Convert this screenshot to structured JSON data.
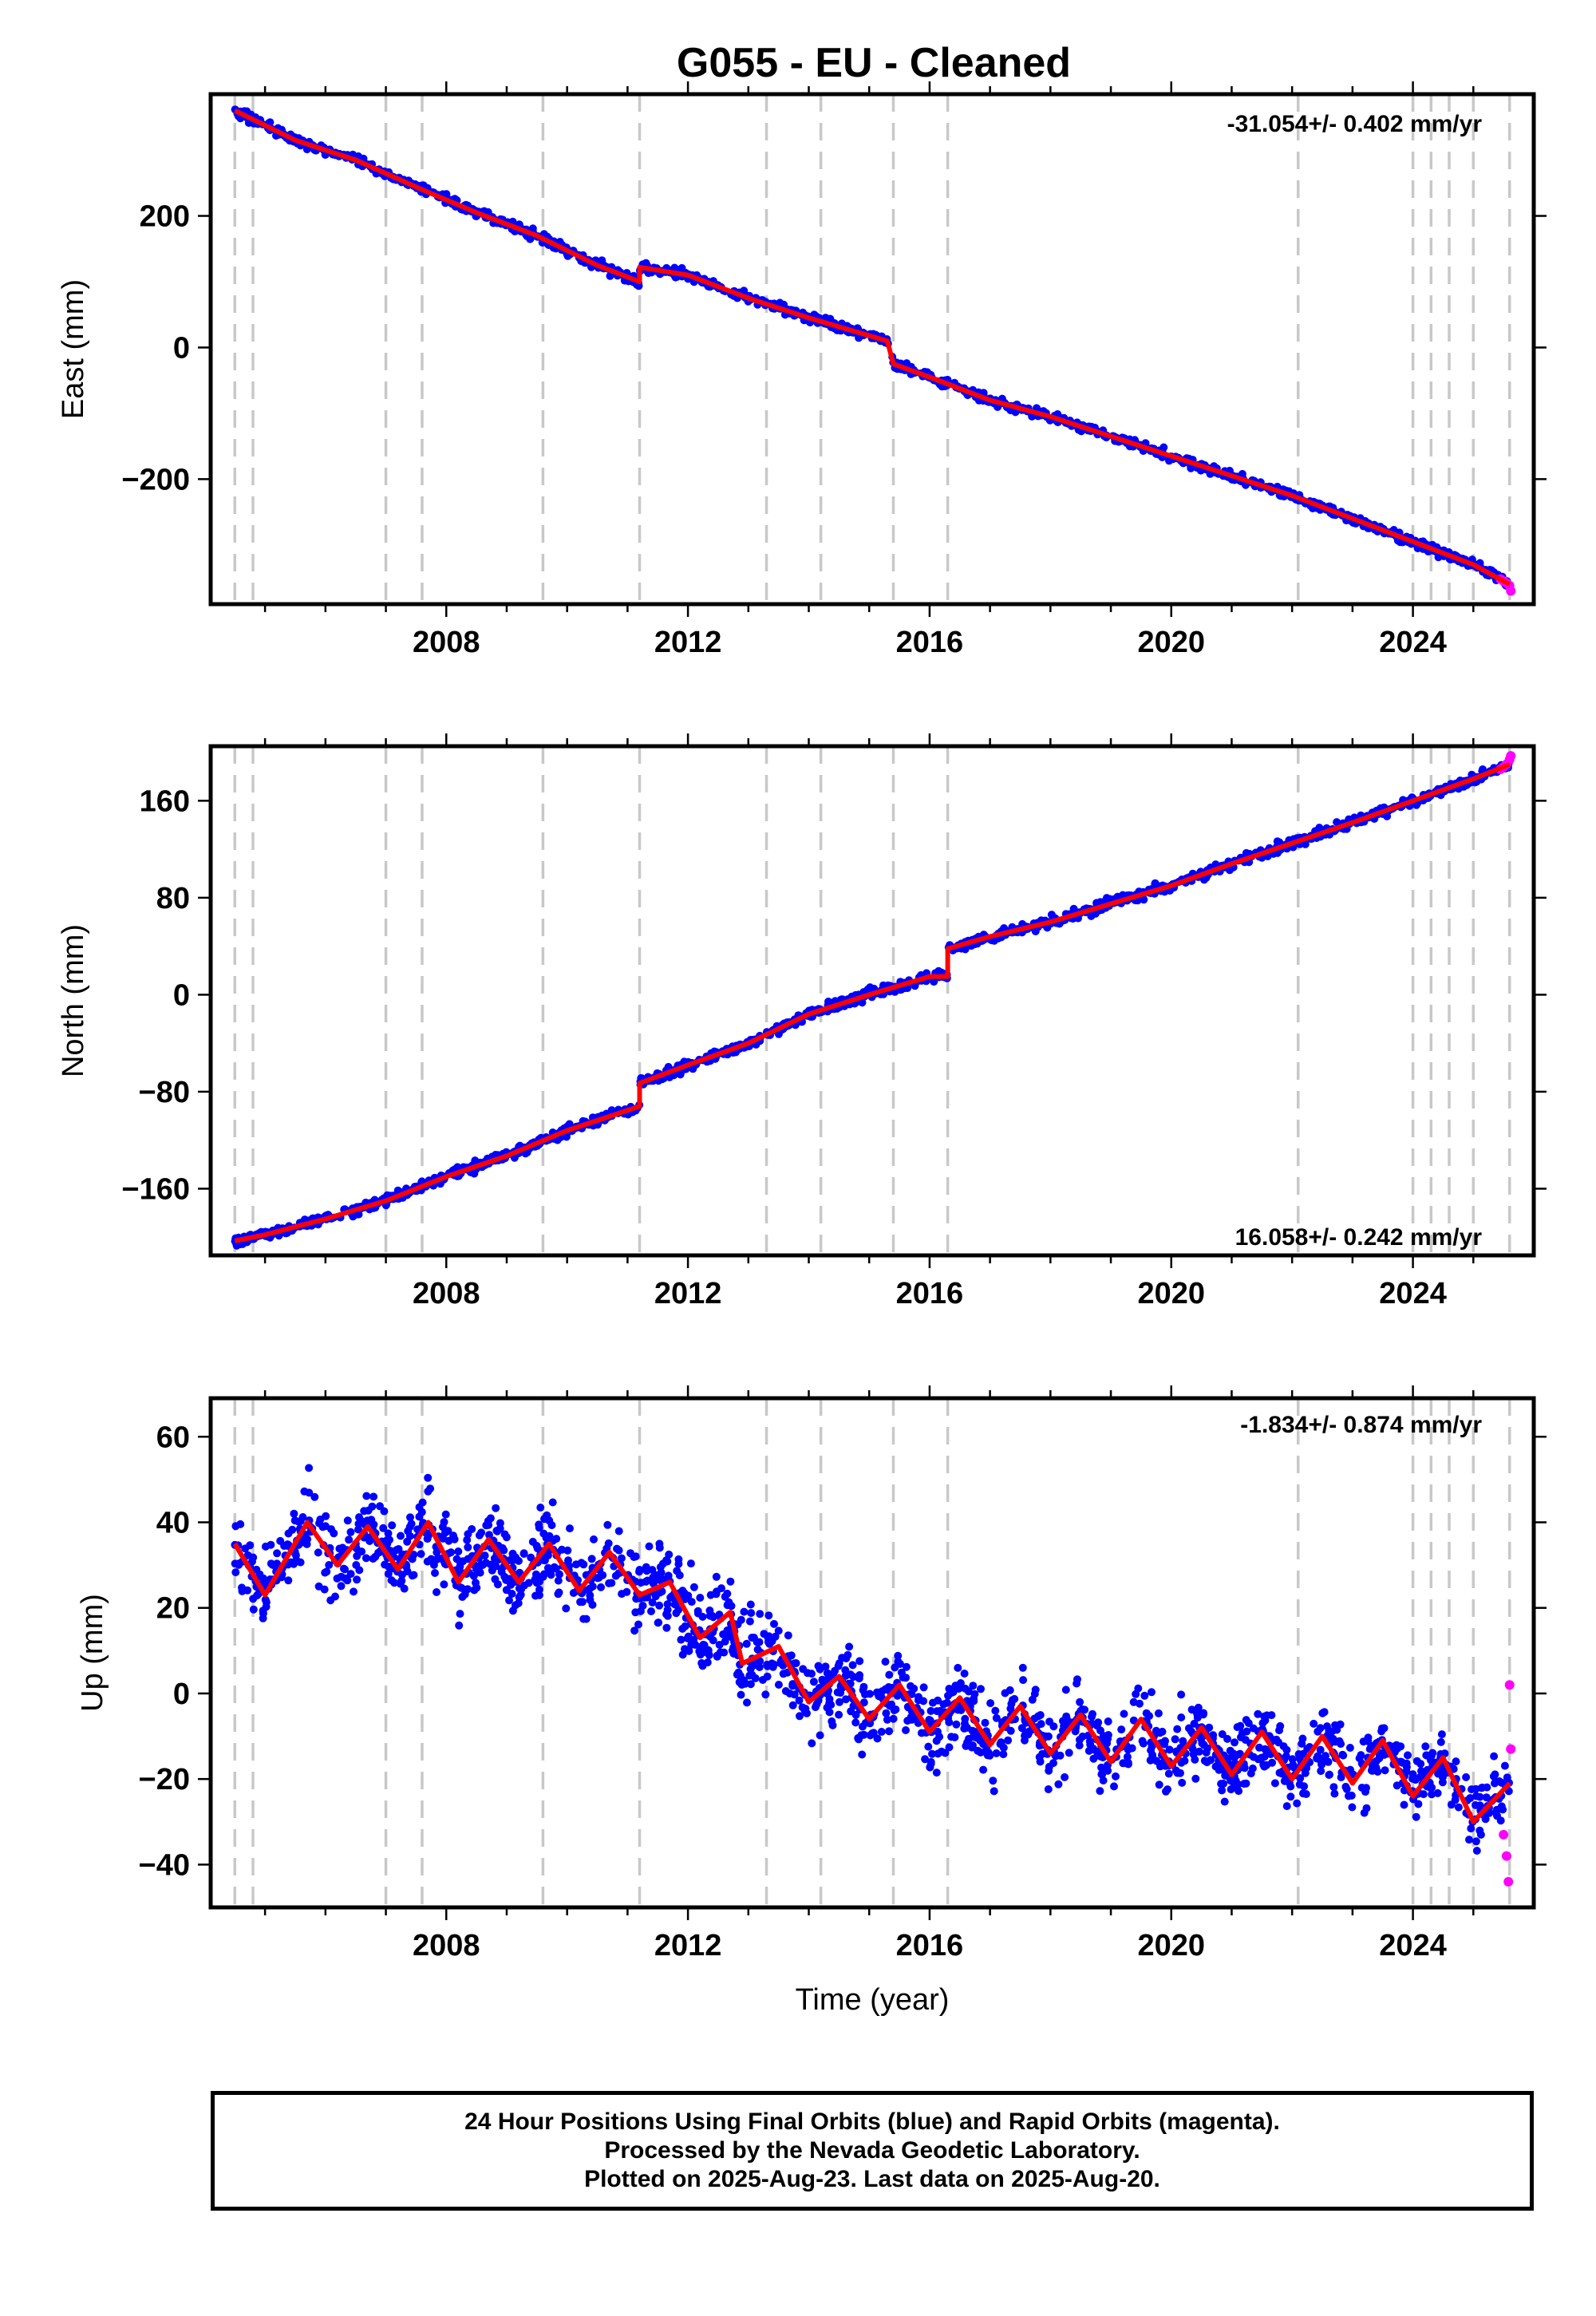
{
  "title": "G055  - EU - Cleaned",
  "footer": {
    "line1": "24 Hour Positions Using Final Orbits (blue) and Rapid Orbits (magenta).",
    "line2": "Processed by the Nevada Geodetic Laboratory.",
    "line3": "Plotted on 2025-Aug-23. Last data on 2025-Aug-20."
  },
  "chart_data": [
    {
      "type": "scatter",
      "ylabel": "East (mm)",
      "xlabel": "",
      "rate": "-31.054+/- 0.402 mm/yr",
      "xlim": [
        2004.1,
        2026.0
      ],
      "ylim": [
        -390,
        385
      ],
      "xticks": [
        2008,
        2012,
        2016,
        2020,
        2024
      ],
      "yticks": [
        -200,
        0,
        200
      ],
      "grid": false,
      "equipment_change_years": [
        2004.5,
        2004.8,
        2007.0,
        2007.6,
        2009.6,
        2011.2,
        2013.3,
        2014.2,
        2015.4,
        2016.3,
        2022.1,
        2024.0,
        2024.3,
        2024.6,
        2025.0,
        2025.6
      ],
      "series": [
        {
          "color": "#0000ff",
          "x": [
            2004.5,
            2005.5,
            2006.5,
            2007.6,
            2008.5,
            2009.5,
            2010.5,
            2011.2,
            2011.2,
            2012.0,
            2013.0,
            2014.0,
            2015.3,
            2015.4,
            2016.0,
            2017.0,
            2018.0,
            2019.0,
            2020.0,
            2021.0,
            2022.0,
            2023.0,
            2024.0,
            2025.0,
            2025.6
          ],
          "y": [
            360,
            315,
            285,
            240,
            205,
            170,
            125,
            100,
            122,
            110,
            75,
            45,
            10,
            -25,
            -45,
            -80,
            -105,
            -135,
            -165,
            -195,
            -225,
            -260,
            -295,
            -330,
            -360
          ]
        },
        {
          "color": "#ff00ff",
          "x": [
            2025.45,
            2025.5,
            2025.55,
            2025.6,
            2025.62
          ],
          "y": [
            -352,
            -355,
            -358,
            -362,
            -370
          ]
        }
      ],
      "model": {
        "name": "",
        "color": "#ff0000",
        "x": [
          2004.5,
          2005.5,
          2006.5,
          2007.6,
          2008.5,
          2009.5,
          2010.5,
          2011.2,
          2011.2,
          2012.0,
          2013.0,
          2014.0,
          2015.3,
          2015.4,
          2016.0,
          2017.0,
          2018.0,
          2019.0,
          2020.0,
          2021.0,
          2022.0,
          2023.0,
          2024.0,
          2025.0,
          2025.6
        ],
        "y": [
          360,
          315,
          285,
          240,
          205,
          170,
          125,
          100,
          122,
          110,
          75,
          45,
          10,
          -25,
          -45,
          -80,
          -105,
          -135,
          -165,
          -195,
          -225,
          -260,
          -295,
          -330,
          -360
        ]
      }
    },
    {
      "type": "scatter",
      "ylabel": "North (mm)",
      "xlabel": "",
      "rate": "16.058+/- 0.242 mm/yr",
      "xlim": [
        2004.1,
        2026.0
      ],
      "ylim": [
        -215,
        205
      ],
      "xticks": [
        2008,
        2012,
        2016,
        2020,
        2024
      ],
      "yticks": [
        -160,
        -80,
        0,
        80,
        160
      ],
      "grid": false,
      "equipment_change_years": [
        2004.5,
        2004.8,
        2007.0,
        2007.6,
        2009.6,
        2011.2,
        2013.3,
        2014.2,
        2015.4,
        2016.3,
        2022.1,
        2024.0,
        2024.3,
        2024.6,
        2025.0,
        2025.6
      ],
      "series": [
        {
          "color": "#0000ff",
          "x": [
            2004.5,
            2005.0,
            2006.0,
            2007.0,
            2008.0,
            2009.0,
            2010.0,
            2011.2,
            2011.2,
            2012.0,
            2013.0,
            2014.0,
            2015.0,
            2016.0,
            2016.3,
            2016.3,
            2017.0,
            2018.0,
            2019.0,
            2020.0,
            2021.0,
            2022.0,
            2023.0,
            2024.0,
            2025.0,
            2025.6
          ],
          "y": [
            -203,
            -198,
            -185,
            -170,
            -150,
            -133,
            -112,
            -92,
            -73,
            -58,
            -40,
            -16,
            0,
            15,
            15,
            38,
            48,
            60,
            75,
            90,
            108,
            125,
            142,
            160,
            178,
            190
          ]
        },
        {
          "color": "#ff00ff",
          "x": [
            2025.45,
            2025.5,
            2025.55,
            2025.6,
            2025.62
          ],
          "y": [
            186,
            188,
            190,
            194,
            197
          ]
        }
      ],
      "model": {
        "name": "",
        "color": "#ff0000",
        "x": [
          2004.5,
          2005.0,
          2006.0,
          2007.0,
          2008.0,
          2009.0,
          2010.0,
          2011.2,
          2011.2,
          2012.0,
          2013.0,
          2014.0,
          2015.0,
          2016.0,
          2016.3,
          2016.3,
          2017.0,
          2018.0,
          2019.0,
          2020.0,
          2021.0,
          2022.0,
          2023.0,
          2024.0,
          2025.0,
          2025.6
        ],
        "y": [
          -203,
          -198,
          -185,
          -170,
          -150,
          -133,
          -112,
          -92,
          -73,
          -58,
          -40,
          -16,
          0,
          15,
          15,
          38,
          48,
          60,
          75,
          90,
          108,
          125,
          142,
          160,
          178,
          190
        ]
      }
    },
    {
      "type": "scatter",
      "ylabel": "Up (mm)",
      "xlabel": "Time (year)",
      "rate": "-1.834+/- 0.874 mm/yr",
      "xlim": [
        2004.1,
        2026.0
      ],
      "ylim": [
        -50,
        69
      ],
      "xticks": [
        2008,
        2012,
        2016,
        2020,
        2024
      ],
      "yticks": [
        -40,
        -20,
        0,
        20,
        40,
        60
      ],
      "grid": false,
      "equipment_change_years": [
        2004.5,
        2004.8,
        2007.0,
        2007.6,
        2009.6,
        2011.2,
        2013.3,
        2014.2,
        2015.4,
        2016.3,
        2022.1,
        2024.0,
        2024.3,
        2024.6,
        2025.0,
        2025.6
      ],
      "series": [
        {
          "color": "#0000ff",
          "x": [
            2004.5,
            2005.0,
            2005.7,
            2006.2,
            2006.7,
            2007.2,
            2007.7,
            2008.2,
            2008.7,
            2009.2,
            2009.7,
            2010.2,
            2010.7,
            2011.2,
            2011.7,
            2012.2,
            2012.7,
            2012.9,
            2013.5,
            2014.0,
            2014.5,
            2015.0,
            2015.5,
            2016.0,
            2016.5,
            2017.0,
            2017.5,
            2018.0,
            2018.5,
            2019.0,
            2019.5,
            2020.0,
            2020.5,
            2021.0,
            2021.5,
            2022.0,
            2022.5,
            2023.0,
            2023.5,
            2024.0,
            2024.5,
            2025.0,
            2025.6
          ],
          "y": [
            35,
            23,
            40,
            30,
            39,
            29,
            40,
            26,
            36,
            26,
            35,
            24,
            33,
            23,
            26,
            13,
            19,
            7,
            11,
            -2,
            4,
            -6,
            2,
            -9,
            -1,
            -12,
            -3,
            -14,
            -5,
            -16,
            -6,
            -17,
            -8,
            -19,
            -9,
            -20,
            -10,
            -21,
            -11,
            -24,
            -15,
            -30,
            -21
          ]
        },
        {
          "color": "#ff00ff",
          "x": [
            2025.5,
            2025.55,
            2025.58,
            2025.6,
            2025.62
          ],
          "y": [
            -33,
            -38,
            -44,
            2,
            -13
          ]
        }
      ],
      "model": {
        "name": "",
        "color": "#ff0000",
        "x": [
          2004.5,
          2005.0,
          2005.7,
          2006.2,
          2006.7,
          2007.2,
          2007.7,
          2008.2,
          2008.7,
          2009.2,
          2009.7,
          2010.2,
          2010.7,
          2011.2,
          2011.7,
          2012.2,
          2012.7,
          2012.9,
          2013.5,
          2014.0,
          2014.5,
          2015.0,
          2015.5,
          2016.0,
          2016.5,
          2017.0,
          2017.5,
          2018.0,
          2018.5,
          2019.0,
          2019.5,
          2020.0,
          2020.5,
          2021.0,
          2021.5,
          2022.0,
          2022.5,
          2023.0,
          2023.5,
          2024.0,
          2024.5,
          2025.0,
          2025.6
        ],
        "y": [
          35,
          23,
          40,
          30,
          39,
          29,
          40,
          26,
          36,
          26,
          35,
          24,
          33,
          23,
          26,
          13,
          19,
          7,
          11,
          -2,
          4,
          -6,
          2,
          -9,
          -1,
          -12,
          -3,
          -14,
          -5,
          -16,
          -6,
          -17,
          -8,
          -19,
          -9,
          -20,
          -10,
          -21,
          -11,
          -24,
          -15,
          -30,
          -21
        ]
      }
    }
  ]
}
